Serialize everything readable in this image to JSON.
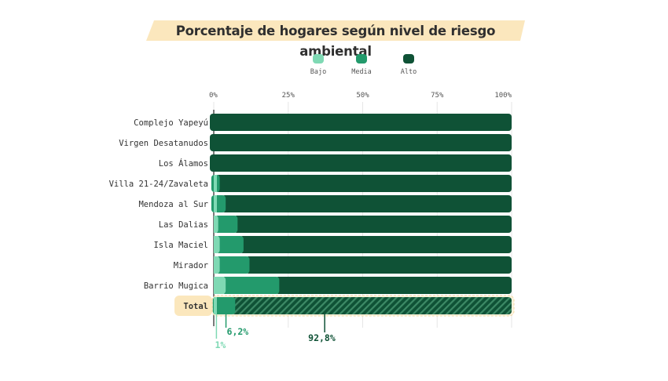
{
  "chart_data": {
    "type": "bar",
    "orientation": "horizontal",
    "stacked": true,
    "percent": true,
    "title": "Porcentaje de hogares según nivel de riesgo ambiental",
    "xlim": [
      0,
      100
    ],
    "x_ticks": [
      "0%",
      "25%",
      "50%",
      "75%",
      "100%"
    ],
    "legend_position": "top",
    "categories": [
      "Complejo Yapeyú",
      "Virgen Desatanudos",
      "Los Álamos",
      "Villa 21-24/Zavaleta",
      "Mendoza al Sur",
      "Las Dalias",
      "Isla Maciel",
      "Mirador",
      "Barrio Mugica",
      "Total"
    ],
    "series": [
      {
        "name": "Bajo",
        "color": "#7fd9b4",
        "values": [
          0,
          0,
          0,
          0.5,
          0.5,
          1.5,
          2,
          2,
          4,
          1
        ]
      },
      {
        "name": "Media",
        "color": "#239a6c",
        "values": [
          0,
          0,
          0,
          1.5,
          3.5,
          6.5,
          8,
          10,
          18,
          6.2
        ]
      },
      {
        "name": "Alto",
        "color": "#0f5236",
        "values": [
          100,
          100,
          100,
          98,
          96,
          92,
          90,
          88,
          78,
          92.8
        ]
      }
    ],
    "highlight_category": "Total",
    "annotations": [
      "1%",
      "6,2%",
      "92,8%"
    ]
  }
}
